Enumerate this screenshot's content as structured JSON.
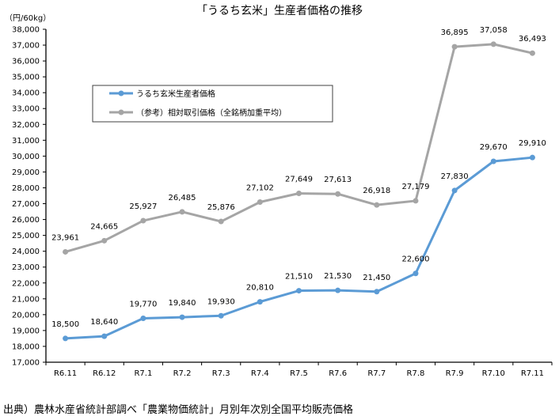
{
  "chart_data": {
    "type": "line",
    "title": "「うるち玄米」生産者価格の推移",
    "ylabel": "（円/60kg）",
    "xlabel": "",
    "ylim": [
      17000,
      38000
    ],
    "ytick_step": 1000,
    "yticks": [
      "17,000",
      "18,000",
      "19,000",
      "20,000",
      "21,000",
      "22,000",
      "23,000",
      "24,000",
      "25,000",
      "26,000",
      "27,000",
      "28,000",
      "29,000",
      "30,000",
      "31,000",
      "32,000",
      "33,000",
      "34,000",
      "35,000",
      "36,000",
      "37,000",
      "38,000"
    ],
    "categories": [
      "R6.11",
      "R6.12",
      "R7.1",
      "R7.2",
      "R7.3",
      "R7.4",
      "R7.5",
      "R7.6",
      "R7.7",
      "R7.8",
      "R7.9",
      "R7.10",
      "R7.11"
    ],
    "grid": false,
    "legend_position": "upper-left",
    "series": [
      {
        "name": "うるち玄米生産者価格",
        "color": "#5B9BD5",
        "values": [
          18500,
          18640,
          19770,
          19840,
          19930,
          20810,
          21510,
          21530,
          21450,
          22600,
          27830,
          29670,
          29910
        ],
        "labels": [
          "18,500",
          "18,640",
          "19,770",
          "19,840",
          "19,930",
          "20,810",
          "21,510",
          "21,530",
          "21,450",
          "22,600",
          "27,830",
          "29,670",
          "29,910"
        ]
      },
      {
        "name": "（参考）相対取引価格（全銘柄加重平均）",
        "color": "#A5A5A5",
        "values": [
          23961,
          24665,
          25927,
          26485,
          25876,
          27102,
          27649,
          27613,
          26918,
          27179,
          36895,
          37058,
          36493
        ],
        "labels": [
          "23,961",
          "24,665",
          "25,927",
          "26,485",
          "25,876",
          "27,102",
          "27,649",
          "27,613",
          "26,918",
          "27,179",
          "36,895",
          "37,058",
          "36,493"
        ]
      }
    ],
    "source": "出典）農林水産省統計部調べ「農業物価統計」月別年次別全国平均販売価格"
  }
}
